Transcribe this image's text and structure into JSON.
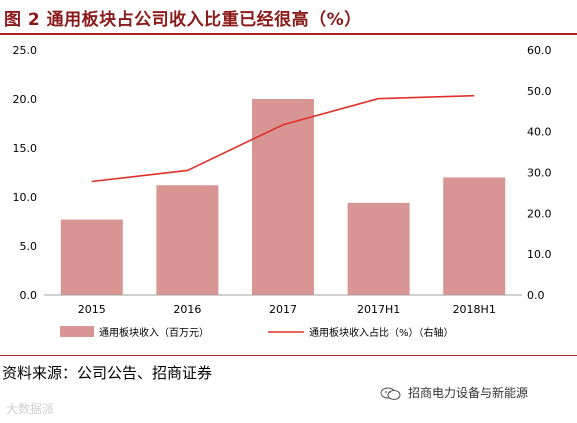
{
  "title": "图 2  通用板块占公司收入比重已经很高（%）",
  "source": "资料来源：公司公告、招商证券",
  "watermark_left": "大数据派",
  "watermark_right": "招商电力设备与新能源",
  "colors": {
    "bar": "#D99594",
    "line": "#E0302A",
    "title": "#8B1A1A",
    "rule": "#B22222"
  },
  "chart_data": {
    "type": "bar",
    "categories": [
      "2015",
      "2016",
      "2017",
      "2017H1",
      "2018H1"
    ],
    "series": [
      {
        "name": "通用板块收入（百万元）",
        "type": "bar",
        "axis": "left",
        "values": [
          7.7,
          11.2,
          20.0,
          9.4,
          12.0
        ]
      },
      {
        "name": "通用板块收入占比（%）（右轴）",
        "type": "line",
        "axis": "right",
        "values": [
          27.8,
          30.5,
          41.7,
          48.1,
          48.8
        ]
      }
    ],
    "y_left": {
      "min": 0,
      "max": 25,
      "ticks": [
        "0.0",
        "5.0",
        "10.0",
        "15.0",
        "20.0",
        "25.0"
      ]
    },
    "y_right": {
      "min": 0,
      "max": 60,
      "ticks": [
        "0.0",
        "10.0",
        "20.0",
        "30.0",
        "40.0",
        "50.0",
        "60.0"
      ]
    },
    "legend_position": "bottom",
    "grid": false
  }
}
